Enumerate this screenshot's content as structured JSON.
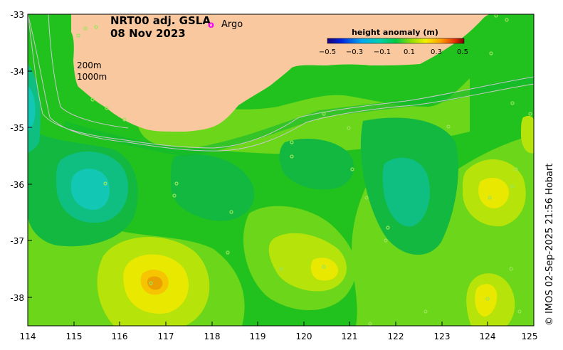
{
  "map": {
    "title_line1": "NRT00 adj. GSLA",
    "title_line2": "08 Nov 2023",
    "argo_marker": "o",
    "argo_label": "Argo",
    "isobath_label_200": "200m",
    "isobath_label_1000": "1000m",
    "credit": "© IMOS 02-Sep-2025 21:56 Hobart",
    "lon_range": [
      114,
      125
    ],
    "lat_range": [
      -38.5,
      -33
    ],
    "x_ticks": [
      "114",
      "115",
      "116",
      "117",
      "118",
      "119",
      "120",
      "121",
      "122",
      "123",
      "124",
      "125"
    ],
    "y_ticks": [
      "-33",
      "-34",
      "-35",
      "-36",
      "-37",
      "-38"
    ],
    "colors": {
      "land": "#f9c89e",
      "argo": "#ff00ff",
      "isobath": "#c8c8c8",
      "frame": "#000000"
    }
  },
  "legend": {
    "title": "height anomaly (m)",
    "ticks": [
      "−0.5",
      "−0.3",
      "−0.1",
      "0.1",
      "0.3",
      "0.5"
    ],
    "range": [
      -0.5,
      0.5
    ]
  }
}
